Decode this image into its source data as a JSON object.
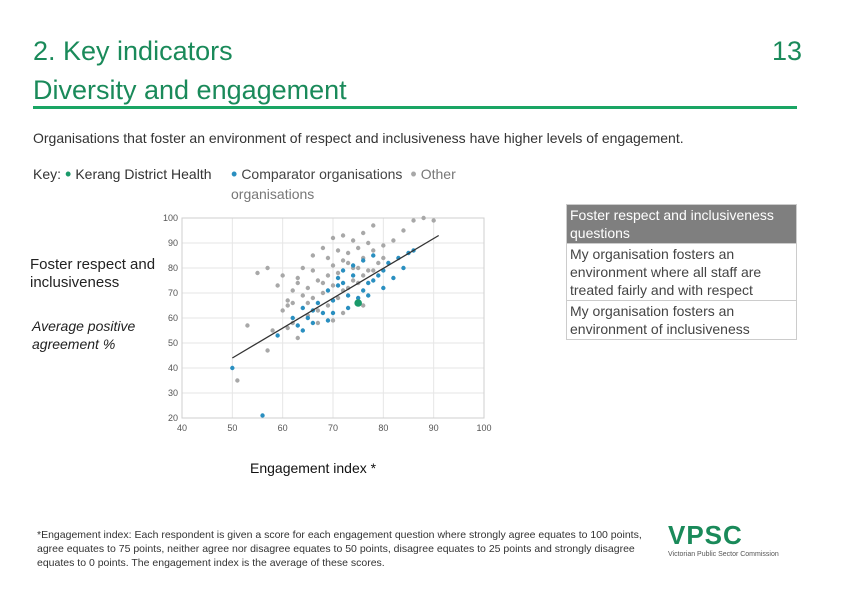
{
  "header": {
    "title_line1": "2. Key indicators",
    "title_line2": "Diversity and engagement",
    "page_number": "13"
  },
  "subtitle": "Organisations that foster an environment of respect and inclusiveness have higher levels of engagement.",
  "key": {
    "label": "Key:",
    "item1": "Kerang District Health",
    "item2": "Comparator organisations",
    "item3": "Other organisations"
  },
  "axis_titles": {
    "y_main": "Foster respect and inclusiveness",
    "y_sub": "Average positive agreement %",
    "x": "Engagement index *"
  },
  "table": {
    "header": "Foster respect and inclusiveness questions",
    "rows": [
      "My organisation fosters an environment where all staff are treated fairly and with respect",
      "My organisation fosters an environment of inclusiveness"
    ]
  },
  "footnote": {
    "label": "*Engagement index:",
    "text": " Each respondent is given a score for each engagement question where strongly agree equates to 100 points, agree equates to 75 points, neither agree nor disagree equates to 50 points, disagree equates to 25 points and strongly disagree equates to 0 points. The engagement index is the average of these scores."
  },
  "logo": {
    "name": "VPSC",
    "subtitle": "Victorian Public Sector Commission"
  },
  "colors": {
    "brand": "#1a8a5a",
    "rule": "#1aa564",
    "kerang": "#1a9a6a",
    "comparator": "#2a8fc0",
    "other": "#a8a8a8"
  },
  "chart_data": {
    "type": "scatter",
    "xlabel": "Engagement index *",
    "ylabel": "Foster respect and inclusiveness",
    "xlim": [
      40,
      100
    ],
    "ylim": [
      20,
      100
    ],
    "x_ticks": [
      40,
      50,
      60,
      70,
      80,
      90,
      100
    ],
    "y_ticks": [
      20,
      30,
      40,
      50,
      60,
      70,
      80,
      90,
      100
    ],
    "trendline": [
      [
        50,
        44
      ],
      [
        91,
        93
      ]
    ],
    "series": [
      {
        "name": "Kerang District Health",
        "points": [
          [
            75,
            66
          ]
        ]
      },
      {
        "name": "Comparator organisations",
        "points": [
          [
            50,
            40
          ],
          [
            56,
            21
          ],
          [
            59,
            53
          ],
          [
            62,
            60
          ],
          [
            63,
            57
          ],
          [
            64,
            64
          ],
          [
            65,
            60
          ],
          [
            66,
            63
          ],
          [
            67,
            66
          ],
          [
            68,
            62
          ],
          [
            69,
            71
          ],
          [
            70,
            67
          ],
          [
            71,
            73
          ],
          [
            72,
            74
          ],
          [
            73,
            69
          ],
          [
            74,
            77
          ],
          [
            75,
            68
          ],
          [
            76,
            71
          ],
          [
            77,
            74
          ],
          [
            78,
            75
          ],
          [
            79,
            77
          ],
          [
            80,
            79
          ],
          [
            81,
            82
          ],
          [
            83,
            84
          ],
          [
            85,
            86
          ],
          [
            72,
            79
          ],
          [
            74,
            81
          ],
          [
            76,
            83
          ],
          [
            78,
            85
          ],
          [
            70,
            62
          ],
          [
            66,
            58
          ],
          [
            64,
            55
          ],
          [
            73,
            64
          ],
          [
            77,
            69
          ],
          [
            80,
            72
          ],
          [
            82,
            76
          ],
          [
            84,
            80
          ],
          [
            86,
            87
          ],
          [
            69,
            59
          ],
          [
            71,
            76
          ]
        ]
      },
      {
        "name": "Other organisations",
        "points": [
          [
            51,
            35
          ],
          [
            53,
            57
          ],
          [
            55,
            78
          ],
          [
            57,
            47
          ],
          [
            58,
            55
          ],
          [
            60,
            63
          ],
          [
            61,
            65
          ],
          [
            62,
            71
          ],
          [
            63,
            76
          ],
          [
            64,
            80
          ],
          [
            65,
            72
          ],
          [
            66,
            79
          ],
          [
            67,
            75
          ],
          [
            68,
            70
          ],
          [
            69,
            77
          ],
          [
            70,
            81
          ],
          [
            71,
            78
          ],
          [
            72,
            83
          ],
          [
            73,
            86
          ],
          [
            74,
            80
          ],
          [
            75,
            88
          ],
          [
            76,
            84
          ],
          [
            77,
            90
          ],
          [
            78,
            87
          ],
          [
            79,
            82
          ],
          [
            80,
            89
          ],
          [
            82,
            91
          ],
          [
            84,
            95
          ],
          [
            86,
            99
          ],
          [
            88,
            100
          ],
          [
            90,
            99
          ],
          [
            62,
            66
          ],
          [
            64,
            69
          ],
          [
            66,
            68
          ],
          [
            68,
            74
          ],
          [
            70,
            73
          ],
          [
            72,
            71
          ],
          [
            74,
            75
          ],
          [
            76,
            77
          ],
          [
            78,
            79
          ],
          [
            63,
            52
          ],
          [
            65,
            61
          ],
          [
            67,
            58
          ],
          [
            69,
            65
          ],
          [
            71,
            68
          ],
          [
            73,
            72
          ],
          [
            75,
            74
          ],
          [
            60,
            77
          ],
          [
            62,
            58
          ],
          [
            66,
            85
          ],
          [
            68,
            88
          ],
          [
            70,
            92
          ],
          [
            72,
            93
          ],
          [
            74,
            91
          ],
          [
            76,
            94
          ],
          [
            78,
            97
          ],
          [
            80,
            84
          ],
          [
            57,
            80
          ],
          [
            59,
            73
          ],
          [
            61,
            67
          ],
          [
            69,
            84
          ],
          [
            71,
            87
          ],
          [
            73,
            82
          ],
          [
            75,
            80
          ],
          [
            77,
            79
          ],
          [
            65,
            66
          ],
          [
            67,
            63
          ],
          [
            61,
            56
          ],
          [
            63,
            74
          ],
          [
            70,
            59
          ],
          [
            72,
            62
          ],
          [
            76,
            65
          ]
        ]
      }
    ]
  }
}
